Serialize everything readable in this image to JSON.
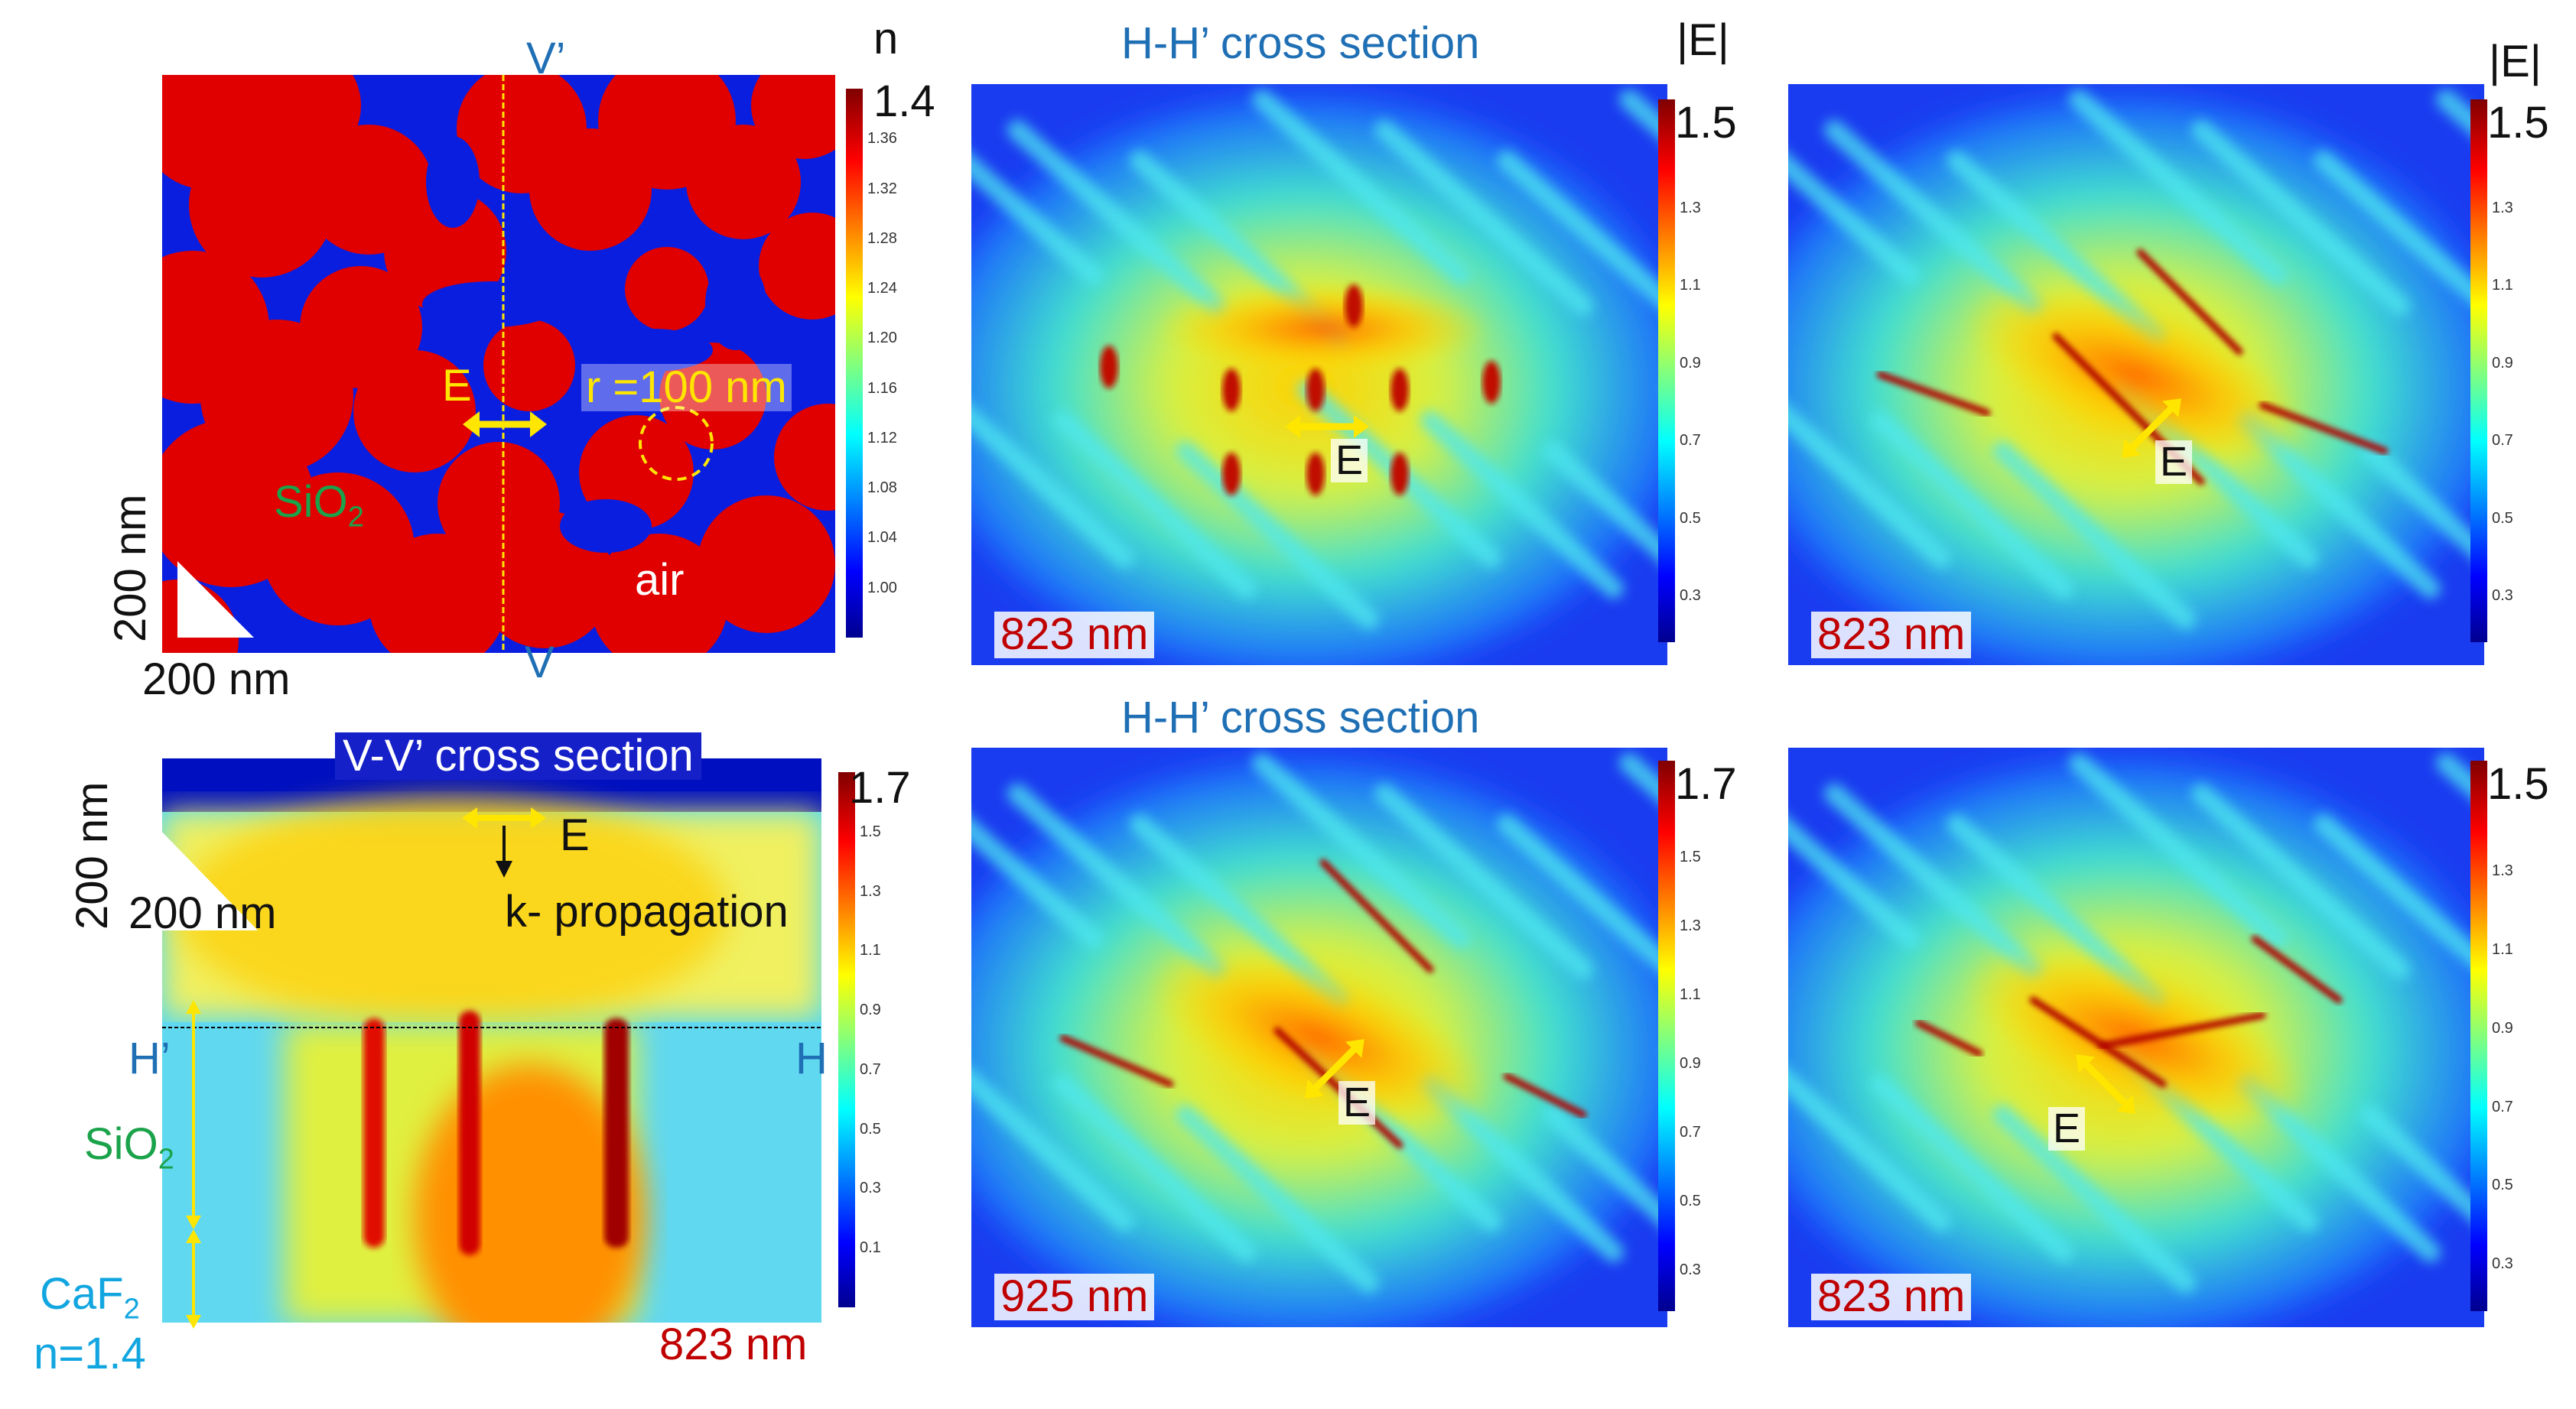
{
  "panel_a": {
    "label_n": "n",
    "cb_max": "1.4",
    "cb_ticks": [
      "1.36",
      "1.32",
      "1.28",
      "1.24",
      "1.20",
      "1.16",
      "1.12",
      "1.08",
      "1.04",
      "1.00"
    ],
    "v_prime": "V’",
    "v": "V",
    "e": "E",
    "radius": "r =100 nm",
    "sio2": "SiO",
    "sio2_sub": "2",
    "air": "air",
    "scale_x": "200 nm",
    "scale_y": "200 nm",
    "colors": {
      "particle": "#e00000",
      "air": "#0a1ee0"
    }
  },
  "panel_b": {
    "title": "V-V’ cross section",
    "cb_max": "1.7",
    "cb_ticks": [
      "1.5",
      "1.3",
      "1.1",
      "0.9",
      "0.7",
      "0.5",
      "0.3",
      "0.1"
    ],
    "e": "E",
    "k": "k- propagation",
    "scale_x": "200 nm",
    "scale_y": "200 nm",
    "h_prime": "H’",
    "h": "H",
    "sio2": "SiO",
    "sio2_sub": "2",
    "caf2": "CaF",
    "caf2_sub": "2",
    "n_value": "n=1.4",
    "wavelength": "823 nm"
  },
  "panel_c": {
    "title": "H-H’ cross section",
    "cb_label": "|E|",
    "cb_max": "1.5",
    "cb_ticks": [
      "1.3",
      "1.1",
      "0.9",
      "0.7",
      "0.5",
      "0.3"
    ],
    "e": "E",
    "wavelength": "823 nm"
  },
  "panel_d": {
    "cb_label": "|E|",
    "cb_max": "1.5",
    "cb_ticks": [
      "1.3",
      "1.1",
      "0.9",
      "0.7",
      "0.5",
      "0.3"
    ],
    "e": "E",
    "wavelength": "823 nm"
  },
  "panel_e": {
    "title": "H-H’ cross section",
    "cb_max": "1.7",
    "cb_ticks": [
      "1.5",
      "1.3",
      "1.1",
      "0.9",
      "0.7",
      "0.5",
      "0.3"
    ],
    "e": "E",
    "wavelength": "925 nm"
  },
  "panel_f": {
    "cb_max": "1.5",
    "cb_ticks": [
      "1.3",
      "1.1",
      "0.9",
      "0.7",
      "0.5",
      "0.3"
    ],
    "e": "E",
    "wavelength": "823 nm"
  }
}
